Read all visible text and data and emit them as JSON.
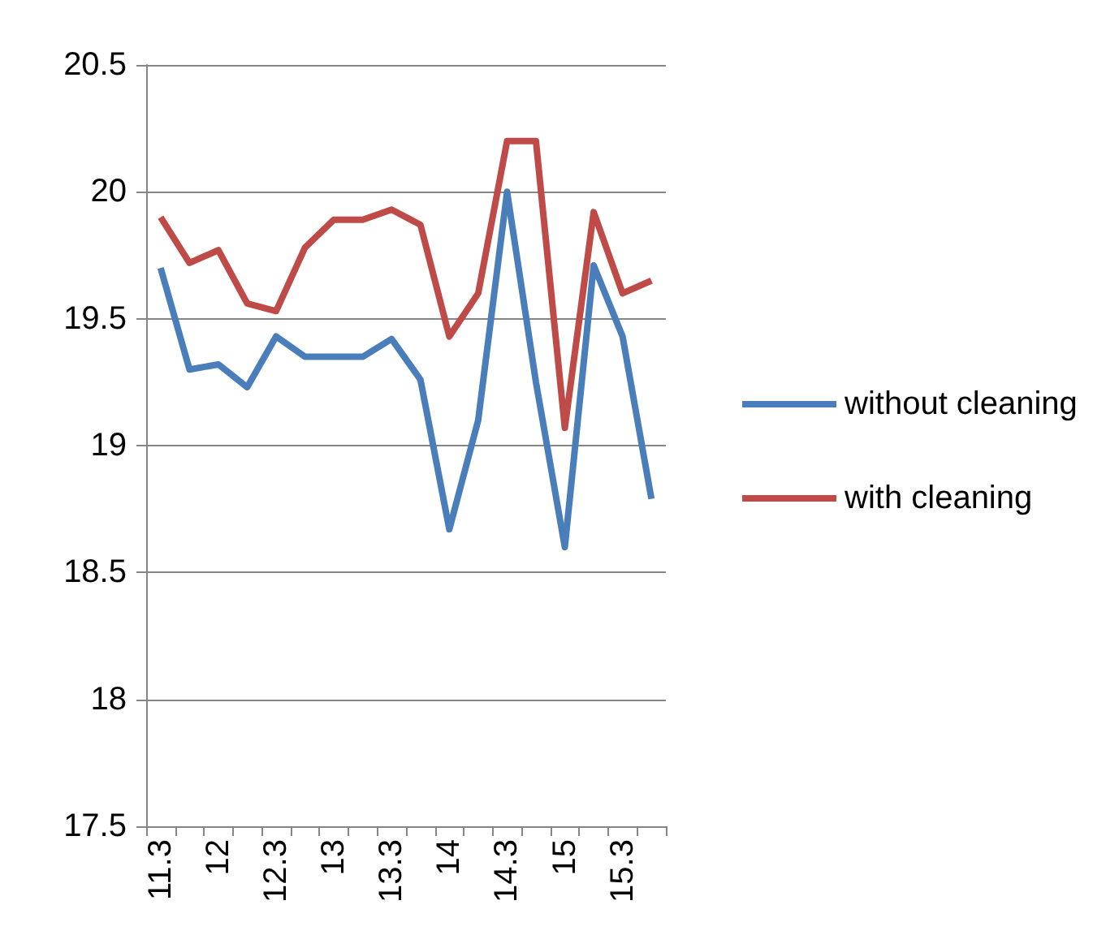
{
  "chart_data": {
    "type": "line",
    "categories": [
      "11.3",
      null,
      "12",
      null,
      "12.3",
      null,
      "13",
      null,
      "13.3",
      null,
      "14",
      null,
      "14.3",
      null,
      "15",
      null,
      "15.3",
      null
    ],
    "series": [
      {
        "name": "without cleaning",
        "color": "#4a7ebb",
        "values": [
          19.7,
          19.3,
          19.32,
          19.23,
          19.43,
          19.35,
          19.35,
          19.35,
          19.42,
          19.26,
          18.67,
          19.1,
          20.0,
          19.25,
          18.6,
          19.71,
          19.43,
          18.79
        ]
      },
      {
        "name": "with cleaning",
        "color": "#be4b48",
        "values": [
          19.9,
          19.72,
          19.77,
          19.56,
          19.53,
          19.78,
          19.89,
          19.89,
          19.93,
          19.87,
          19.43,
          19.6,
          20.2,
          20.2,
          19.07,
          19.92,
          19.6,
          19.65
        ]
      }
    ],
    "ylim": [
      17.5,
      20.5
    ],
    "yticks": [
      17.5,
      18,
      18.5,
      19,
      19.5,
      20,
      20.5
    ],
    "grid": "y",
    "legend": "right",
    "marker": "none",
    "line_style": "solid"
  }
}
